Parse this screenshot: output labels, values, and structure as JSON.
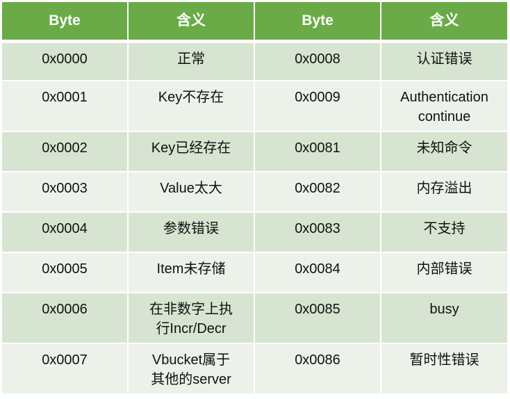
{
  "headers": [
    "Byte",
    "含义",
    "Byte",
    "含义"
  ],
  "rows": [
    {
      "b1": "0x0000",
      "m1": [
        "正常"
      ],
      "b2": "0x0008",
      "m2": [
        "认证错误"
      ]
    },
    {
      "b1": "0x0001",
      "m1": [
        "Key不存在"
      ],
      "b2": "0x0009",
      "m2": [
        "Authentication",
        "continue"
      ]
    },
    {
      "b1": "0x0002",
      "m1": [
        "Key已经存在"
      ],
      "b2": "0x0081",
      "m2": [
        "未知命令"
      ]
    },
    {
      "b1": "0x0003",
      "m1": [
        "Value太大"
      ],
      "b2": "0x0082",
      "m2": [
        "内存溢出"
      ]
    },
    {
      "b1": "0x0004",
      "m1": [
        "参数错误"
      ],
      "b2": "0x0083",
      "m2": [
        "不支持"
      ]
    },
    {
      "b1": "0x0005",
      "m1": [
        "Item未存储"
      ],
      "b2": "0x0084",
      "m2": [
        "内部错误"
      ]
    },
    {
      "b1": "0x0006",
      "m1": [
        "在非数字上执",
        "行Incr/Decr"
      ],
      "b2": "0x0085",
      "m2": [
        "busy"
      ]
    },
    {
      "b1": "0x0007",
      "m1": [
        "Vbucket属于",
        "其他的server"
      ],
      "b2": "0x0086",
      "m2": [
        "暂时性错误"
      ]
    }
  ],
  "colors": {
    "header": "#6aab47",
    "row_dark": "#d7e4d1",
    "row_light": "#ecf1ea"
  }
}
